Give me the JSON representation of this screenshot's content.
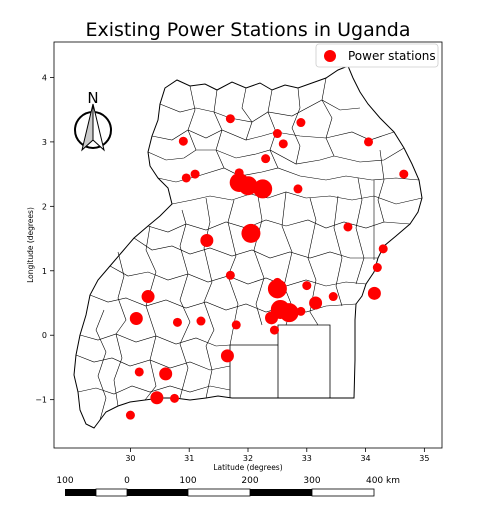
{
  "chart_data": {
    "type": "scatter",
    "title": "Existing Power Stations in Uganda",
    "xlabel": "Latitude (degrees)",
    "ylabel": "Longitude (degrees)",
    "xlim": [
      28.7,
      35.3
    ],
    "ylim": [
      -1.75,
      4.55
    ],
    "x_ticks": [
      30,
      31,
      32,
      33,
      34,
      35
    ],
    "y_ticks": [
      -1,
      0,
      1,
      2,
      3,
      4
    ],
    "legend": {
      "label": "Power stations",
      "location": "upper right"
    },
    "marker_color": "#ff0000",
    "points": [
      {
        "x": 31.7,
        "y": 3.36,
        "s": "small"
      },
      {
        "x": 32.5,
        "y": 3.13,
        "s": "small"
      },
      {
        "x": 32.9,
        "y": 3.3,
        "s": "small"
      },
      {
        "x": 32.6,
        "y": 2.97,
        "s": "small"
      },
      {
        "x": 30.9,
        "y": 3.01,
        "s": "small"
      },
      {
        "x": 34.05,
        "y": 3.0,
        "s": "small"
      },
      {
        "x": 32.3,
        "y": 2.74,
        "s": "small"
      },
      {
        "x": 34.65,
        "y": 2.5,
        "s": "small"
      },
      {
        "x": 31.1,
        "y": 2.5,
        "s": "small"
      },
      {
        "x": 30.95,
        "y": 2.44,
        "s": "small"
      },
      {
        "x": 31.85,
        "y": 2.52,
        "s": "small"
      },
      {
        "x": 31.85,
        "y": 2.37,
        "s": "large"
      },
      {
        "x": 32.0,
        "y": 2.32,
        "s": "large"
      },
      {
        "x": 32.25,
        "y": 2.27,
        "s": "large"
      },
      {
        "x": 32.85,
        "y": 2.27,
        "s": "small"
      },
      {
        "x": 31.3,
        "y": 1.47,
        "s": "medium"
      },
      {
        "x": 32.05,
        "y": 1.58,
        "s": "large"
      },
      {
        "x": 33.7,
        "y": 1.68,
        "s": "small"
      },
      {
        "x": 34.3,
        "y": 1.34,
        "s": "small"
      },
      {
        "x": 34.2,
        "y": 1.05,
        "s": "small"
      },
      {
        "x": 31.7,
        "y": 0.93,
        "s": "small"
      },
      {
        "x": 32.5,
        "y": 0.82,
        "s": "small"
      },
      {
        "x": 32.5,
        "y": 0.72,
        "s": "large"
      },
      {
        "x": 33.0,
        "y": 0.77,
        "s": "small"
      },
      {
        "x": 34.15,
        "y": 0.65,
        "s": "medium"
      },
      {
        "x": 30.3,
        "y": 0.6,
        "s": "medium"
      },
      {
        "x": 33.45,
        "y": 0.6,
        "s": "small"
      },
      {
        "x": 33.15,
        "y": 0.5,
        "s": "medium"
      },
      {
        "x": 32.55,
        "y": 0.4,
        "s": "large"
      },
      {
        "x": 32.7,
        "y": 0.35,
        "s": "large"
      },
      {
        "x": 32.4,
        "y": 0.27,
        "s": "medium"
      },
      {
        "x": 32.9,
        "y": 0.37,
        "s": "small"
      },
      {
        "x": 30.1,
        "y": 0.26,
        "s": "medium"
      },
      {
        "x": 30.8,
        "y": 0.2,
        "s": "small"
      },
      {
        "x": 31.2,
        "y": 0.22,
        "s": "small"
      },
      {
        "x": 31.8,
        "y": 0.16,
        "s": "small"
      },
      {
        "x": 32.45,
        "y": 0.08,
        "s": "small"
      },
      {
        "x": 31.65,
        "y": -0.32,
        "s": "medium"
      },
      {
        "x": 30.15,
        "y": -0.57,
        "s": "small"
      },
      {
        "x": 30.6,
        "y": -0.6,
        "s": "medium"
      },
      {
        "x": 30.45,
        "y": -0.97,
        "s": "medium"
      },
      {
        "x": 30.75,
        "y": -0.98,
        "s": "small"
      },
      {
        "x": 30.0,
        "y": -1.24,
        "s": "small"
      }
    ]
  },
  "north_arrow": {
    "label": "N"
  },
  "scale_bar": {
    "labels": [
      "100",
      "0",
      "100",
      "200",
      "300",
      "400 km"
    ]
  }
}
